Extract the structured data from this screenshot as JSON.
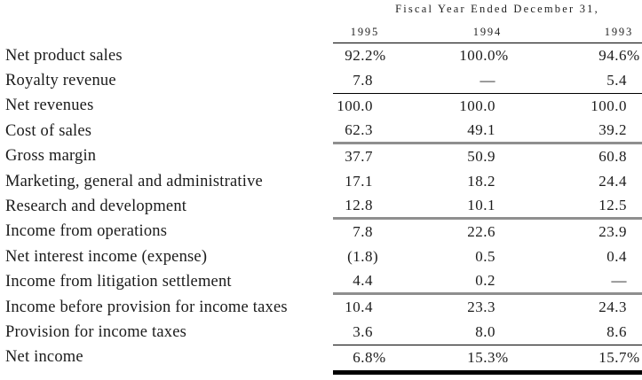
{
  "page": {
    "background": "#ffffff",
    "text_color": "#1b1b1b",
    "thin_rule_color": "#000000",
    "gray_rule_color": "#8f8f8f"
  },
  "table": {
    "title": "Fiscal Year Ended December 31,",
    "year_columns": [
      "1995",
      "1994",
      "1993"
    ],
    "rows": [
      {
        "label": "Net product sales",
        "cells": [
          {
            "v": "92.2",
            "s": "%"
          },
          {
            "v": "100.0",
            "s": "%"
          },
          {
            "v": "94.6",
            "s": "%"
          }
        ],
        "rule_below": "none"
      },
      {
        "label": "Royalty revenue",
        "cells": [
          {
            "v": "7.8",
            "s": ""
          },
          {
            "v": "—",
            "s": ""
          },
          {
            "v": "5.4",
            "s": ""
          }
        ],
        "rule_below": "thin"
      },
      {
        "label": "Net revenues",
        "cells": [
          {
            "v": "100.0",
            "s": ""
          },
          {
            "v": "100.0",
            "s": ""
          },
          {
            "v": "100.0",
            "s": ""
          }
        ],
        "rule_below": "none"
      },
      {
        "label": "Cost of sales",
        "cells": [
          {
            "v": "62.3",
            "s": ""
          },
          {
            "v": "49.1",
            "s": ""
          },
          {
            "v": "39.2",
            "s": ""
          }
        ],
        "rule_below": "gray"
      },
      {
        "label": "Gross margin",
        "cells": [
          {
            "v": "37.7",
            "s": ""
          },
          {
            "v": "50.9",
            "s": ""
          },
          {
            "v": "60.8",
            "s": ""
          }
        ],
        "rule_below": "none"
      },
      {
        "label": "Marketing, general and administrative",
        "cells": [
          {
            "v": "17.1",
            "s": ""
          },
          {
            "v": "18.2",
            "s": ""
          },
          {
            "v": "24.4",
            "s": ""
          }
        ],
        "rule_below": "none"
      },
      {
        "label": "Research and development",
        "cells": [
          {
            "v": "12.8",
            "s": ""
          },
          {
            "v": "10.1",
            "s": ""
          },
          {
            "v": "12.5",
            "s": ""
          }
        ],
        "rule_below": "gray"
      },
      {
        "label": "Income from operations",
        "cells": [
          {
            "v": "7.8",
            "s": ""
          },
          {
            "v": "22.6",
            "s": ""
          },
          {
            "v": "23.9",
            "s": ""
          }
        ],
        "rule_below": "none"
      },
      {
        "label": "Net interest income (expense)",
        "cells": [
          {
            "v": "(1.8",
            "s": ")"
          },
          {
            "v": "0.5",
            "s": ""
          },
          {
            "v": "0.4",
            "s": ""
          }
        ],
        "rule_below": "none"
      },
      {
        "label": "Income from litigation settlement",
        "cells": [
          {
            "v": "4.4",
            "s": ""
          },
          {
            "v": "0.2",
            "s": ""
          },
          {
            "v": "—",
            "s": ""
          }
        ],
        "rule_below": "gray"
      },
      {
        "label": "Income before provision for income taxes",
        "cells": [
          {
            "v": "10.4",
            "s": ""
          },
          {
            "v": "23.3",
            "s": ""
          },
          {
            "v": "24.3",
            "s": ""
          }
        ],
        "rule_below": "none"
      },
      {
        "label": "Provision for income taxes",
        "cells": [
          {
            "v": "3.6",
            "s": ""
          },
          {
            "v": "8.0",
            "s": ""
          },
          {
            "v": "8.6",
            "s": ""
          }
        ],
        "rule_below": "thin"
      },
      {
        "label": "Net income",
        "cells": [
          {
            "v": "6.8",
            "s": "%"
          },
          {
            "v": "15.3",
            "s": "%"
          },
          {
            "v": "15.7",
            "s": "%"
          }
        ],
        "rule_below": "thick"
      }
    ]
  }
}
